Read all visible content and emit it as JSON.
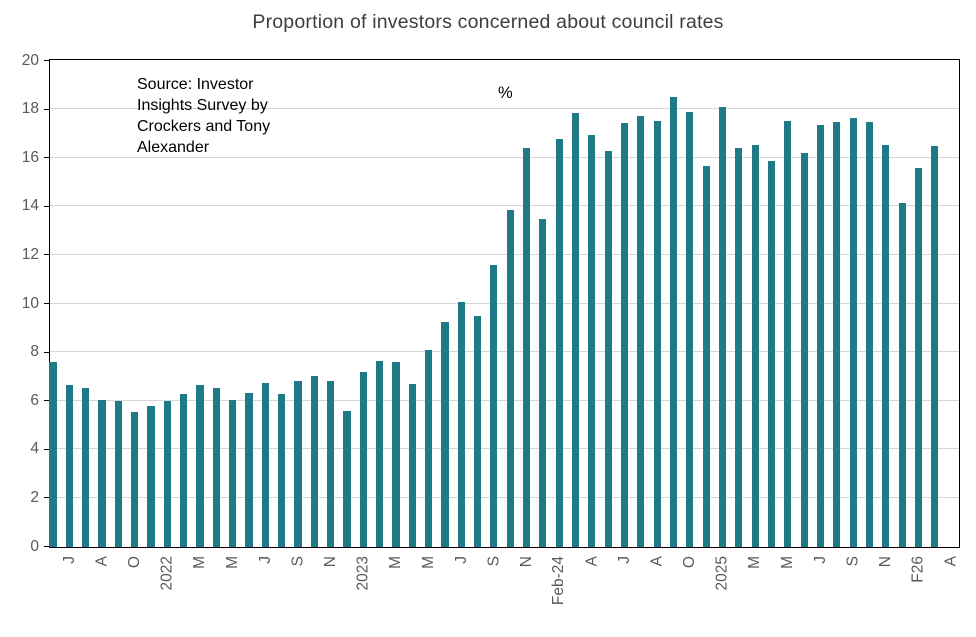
{
  "page": {
    "background": "#ffffff"
  },
  "colors": {
    "bar": "#1f7987",
    "gridline": "#d7d7d7",
    "axis_border": "#000000",
    "tick_text": "#595959",
    "title_text": "#3e3e3e",
    "annotation_text": "#000000"
  },
  "chart_data": {
    "type": "bar",
    "title": "Proportion of investors concerned about council rates",
    "source_note": "Source: Investor\nInsights Survey by\nCrockers and Tony\nAlexander",
    "unit_label": "%",
    "xlabel": "",
    "ylabel": "",
    "ylim": [
      0,
      20
    ],
    "yticks": [
      0,
      2,
      4,
      6,
      8,
      10,
      12,
      14,
      16,
      18,
      20
    ],
    "grid": "horizontal-only",
    "legend_position": "none",
    "bar_color": "#1f7987",
    "x_label_every_n_bars": 2,
    "x_tick_labels": [
      "J",
      "A",
      "O",
      "2022",
      "M",
      "M",
      "J",
      "S",
      "N",
      "2023",
      "M",
      "M",
      "J",
      "S",
      "N",
      "Feb-24",
      "A",
      "J",
      "A",
      "O",
      "2025",
      "M",
      "M",
      "J",
      "S",
      "N",
      "F26",
      "A"
    ],
    "values": [
      7.6,
      6.65,
      6.55,
      6.05,
      6.0,
      5.55,
      5.8,
      6.0,
      6.3,
      6.65,
      6.55,
      6.05,
      6.35,
      6.75,
      6.3,
      6.85,
      7.05,
      6.85,
      5.6,
      7.2,
      7.65,
      7.6,
      6.7,
      8.1,
      9.25,
      10.1,
      9.5,
      11.6,
      13.85,
      16.4,
      13.5,
      16.8,
      17.85,
      16.95,
      16.3,
      17.45,
      17.75,
      17.55,
      18.5,
      17.9,
      15.7,
      18.1,
      16.4,
      16.55,
      15.9,
      17.55,
      16.2,
      17.35,
      17.5,
      17.65,
      17.5,
      16.55,
      14.15,
      15.6,
      16.5
    ]
  }
}
